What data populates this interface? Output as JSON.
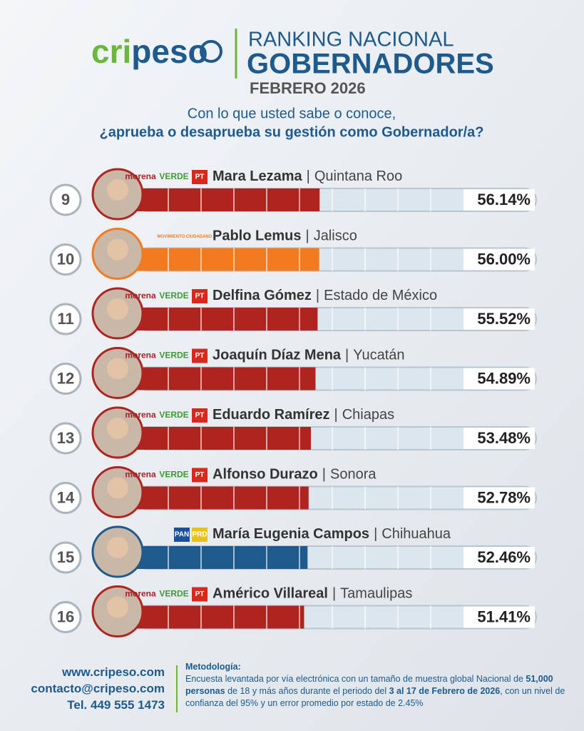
{
  "header": {
    "logo_left": "cri",
    "logo_right": "peso",
    "title_line1": "RANKING NACIONAL",
    "title_line2": "GOBERNADORES",
    "period": "FEBRERO 2026",
    "question_line1": "Con lo que usted sabe o conoce,",
    "question_line2": "¿aprueba o desaprueba su gestión como Gobernador/a?"
  },
  "chart_data": {
    "type": "bar",
    "ranks": [
      9,
      10,
      11,
      12,
      13,
      14,
      15,
      16
    ],
    "categories": [
      "Mara Lezama",
      "Pablo Lemus",
      "Delfina Gómez",
      "Joaquín Díaz Mena",
      "Eduardo Ramírez",
      "Alfonso Durazo",
      "María Eugenia Campos",
      "Américo Villareal"
    ],
    "separator": "|",
    "states": [
      "Quintana Roo",
      "Jalisco",
      "Estado de México",
      "Yucatán",
      "Chiapas",
      "Sonora",
      "Chihuahua",
      "Tamaulipas"
    ],
    "parties": [
      [
        {
          "name": "morena",
          "color": "#a3232b"
        },
        {
          "name": "VERDE",
          "color": "#3d9b35"
        },
        {
          "name": "PT",
          "color": "#d62a1e"
        }
      ],
      [
        {
          "name": "MOVIMIENTO CIUDADANO",
          "color": "#f47a20"
        }
      ],
      [
        {
          "name": "morena",
          "color": "#a3232b"
        },
        {
          "name": "VERDE",
          "color": "#3d9b35"
        },
        {
          "name": "PT",
          "color": "#d62a1e"
        }
      ],
      [
        {
          "name": "morena",
          "color": "#a3232b"
        },
        {
          "name": "VERDE",
          "color": "#3d9b35"
        },
        {
          "name": "PT",
          "color": "#d62a1e"
        }
      ],
      [
        {
          "name": "morena",
          "color": "#a3232b"
        },
        {
          "name": "VERDE",
          "color": "#3d9b35"
        },
        {
          "name": "PT",
          "color": "#d62a1e"
        }
      ],
      [
        {
          "name": "morena",
          "color": "#a3232b"
        },
        {
          "name": "VERDE",
          "color": "#3d9b35"
        },
        {
          "name": "PT",
          "color": "#d62a1e"
        }
      ],
      [
        {
          "name": "PAN",
          "color": "#1f4e9c"
        },
        {
          "name": "PRD",
          "color": "#e8c21c"
        }
      ],
      [
        {
          "name": "morena",
          "color": "#a3232b"
        },
        {
          "name": "VERDE",
          "color": "#3d9b35"
        },
        {
          "name": "PT",
          "color": "#d62a1e"
        }
      ]
    ],
    "values": [
      56.14,
      56.0,
      55.52,
      54.89,
      53.48,
      52.78,
      52.46,
      51.41
    ],
    "value_labels": [
      "56.14%",
      "56.00%",
      "55.52%",
      "54.89%",
      "53.48%",
      "52.78%",
      "52.46%",
      "51.41%"
    ],
    "colors": [
      "#b0241f",
      "#f47a20",
      "#b0241f",
      "#b0241f",
      "#b0241f",
      "#b0241f",
      "#1e5a8c",
      "#b0241f"
    ],
    "xlim": [
      0,
      100
    ]
  },
  "footer": {
    "web": "www.cripeso.com",
    "email": "contacto@cripeso.com",
    "phone": "Tel. 449 555 1473",
    "methodology_title": "Metodología:",
    "methodology": [
      {
        "text": "Encuesta levantada por vía electrónica con un tamaño de muestra global Nacional de ",
        "bold": false
      },
      {
        "text": "51,000 personas",
        "bold": true
      },
      {
        "text": " de 18 y más años durante el periodo del ",
        "bold": false
      },
      {
        "text": "3 al 17 de Febrero de 2026",
        "bold": true
      },
      {
        "text": ", con un nivel de confianza del 95% y un error promedio por estado de 2.45%",
        "bold": false
      }
    ]
  }
}
